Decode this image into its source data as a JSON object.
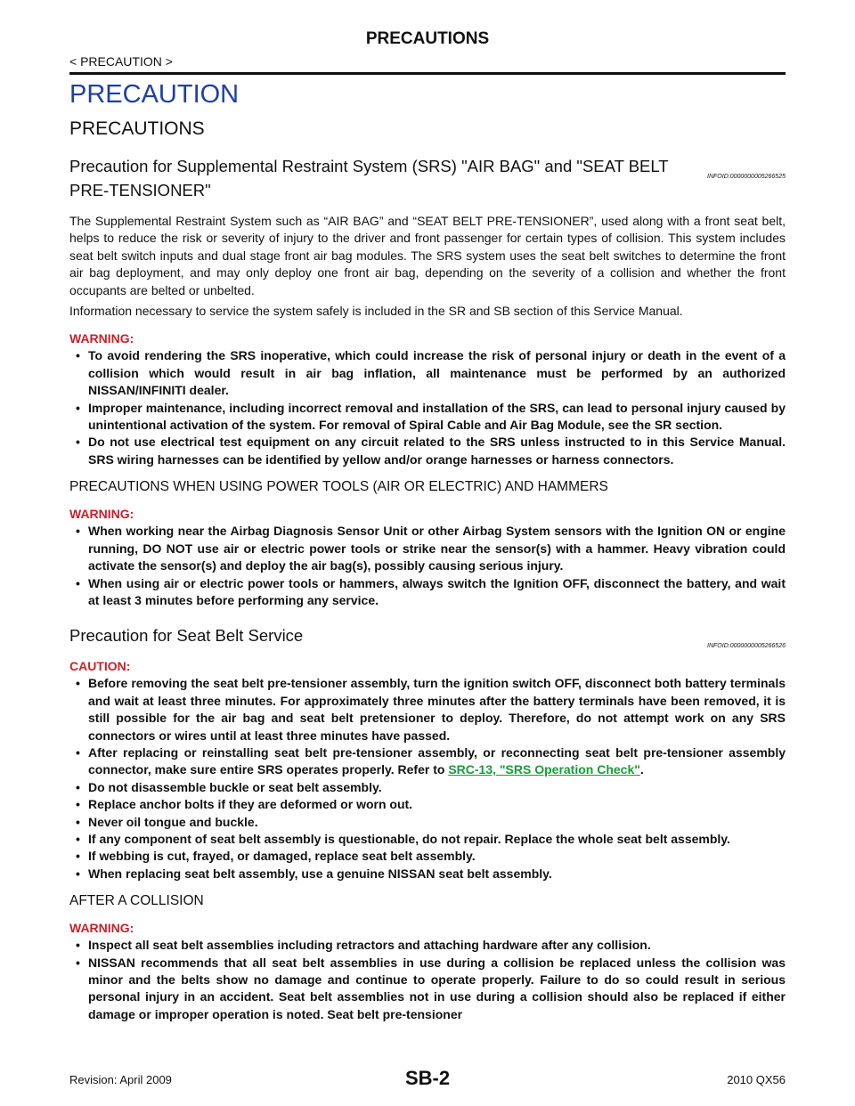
{
  "header": {
    "title": "PRECAUTIONS",
    "breadcrumb": "< PRECAUTION >"
  },
  "chapter": "PRECAUTION",
  "section": "PRECAUTIONS",
  "topics": [
    {
      "heading": "Precaution for Supplemental Restraint System (SRS) \"AIR BAG\" and \"SEAT BELT PRE-TENSIONER\"",
      "infoid": "INFOID:0000000005266525",
      "blocks": [
        {
          "text": "The Supplemental Restraint System such as “AIR BAG” and “SEAT BELT PRE-TENSIONER”, used along with a front seat belt, helps to reduce the risk or severity of injury to the driver and front passenger for certain types of collision. This system includes seat belt switch inputs and dual stage front air bag modules. The SRS system uses the seat belt switches to determine the front air bag deployment, and may only deploy one front air bag, depending on the severity of a collision and whether the front occupants are belted or unbelted."
        },
        {
          "text": "Information necessary to service the system safely is included in the SR and SB section of this Service Manual."
        },
        {
          "label": "WARNING:",
          "items": [
            {
              "text": "To avoid rendering the SRS inoperative, which could increase the risk of personal injury or death in the event of a collision which would result in air bag inflation, all maintenance must be performed by an authorized NISSAN/INFINITI dealer."
            },
            {
              "text": "Improper maintenance, including incorrect removal and installation of the SRS, can lead to personal injury caused by unintentional activation of the system. For removal of Spiral Cable and Air Bag Module, see the SR section."
            },
            {
              "text": "Do not use electrical test equipment on any circuit related to the SRS unless instructed to in this Service Manual. SRS wiring harnesses can be identified by yellow and/or orange harnesses or harness connectors."
            }
          ]
        },
        {
          "subheading": "PRECAUTIONS WHEN USING POWER TOOLS (AIR OR ELECTRIC) AND HAMMERS"
        },
        {
          "label": "WARNING:",
          "items": [
            {
              "text": "When working near the Airbag Diagnosis Sensor Unit or other Airbag System sensors with the Ignition ON or engine running, DO NOT use air or electric power tools or strike near the sensor(s) with a hammer. Heavy vibration could activate the sensor(s) and deploy the air bag(s), possibly causing serious injury."
            },
            {
              "text": "When using air or electric power tools or hammers, always switch the Ignition OFF, disconnect the battery, and wait at least 3 minutes before performing any service."
            }
          ]
        }
      ]
    },
    {
      "heading": "Precaution for Seat Belt Service",
      "infoid": "INFOID:0000000005266526",
      "blocks": [
        {
          "label": "CAUTION:",
          "items": [
            {
              "text": "Before removing the seat belt pre-tensioner assembly, turn the ignition switch OFF, disconnect both battery terminals and wait at least three minutes. For approximately three minutes after the battery terminals have been removed, it is still possible for the air bag and seat belt pretensioner to deploy. Therefore, do not attempt work on any SRS connectors or wires until at least three minutes have passed."
            },
            {
              "text": "After replacing or reinstalling seat belt pre-tensioner assembly, or reconnecting seat belt pre-tensioner assembly connector, make sure entire SRS operates properly. Refer to ",
              "link": "SRC-13, \"SRS Operation Check\"",
              "after": "."
            },
            {
              "text": "Do not disassemble buckle or seat belt assembly."
            },
            {
              "text": "Replace anchor bolts if they are deformed or worn out."
            },
            {
              "text": "Never oil tongue and buckle."
            },
            {
              "text": "If any component of seat belt assembly is questionable, do not repair. Replace the whole seat belt assembly."
            },
            {
              "text": "If webbing is cut, frayed, or damaged, replace seat belt assembly."
            },
            {
              "text": "When replacing seat belt assembly, use a genuine NISSAN seat belt assembly."
            }
          ]
        },
        {
          "subheading": "AFTER A COLLISION"
        },
        {
          "label": "WARNING:",
          "items": [
            {
              "text": "Inspect all seat belt assemblies including retractors and attaching hardware after any collision."
            },
            {
              "text": "NISSAN recommends that all seat belt assemblies in use during a collision be replaced unless the collision was minor and the belts show no damage and continue to operate properly. Failure to do so could result in serious personal injury in an accident. Seat belt assemblies not in use during a collision should also be replaced if either damage or improper operation is noted. Seat belt pre-tensioner"
            }
          ]
        }
      ]
    }
  ],
  "footer": {
    "revision": "Revision: April 2009",
    "page": "SB-2",
    "model": "2010 QX56"
  }
}
